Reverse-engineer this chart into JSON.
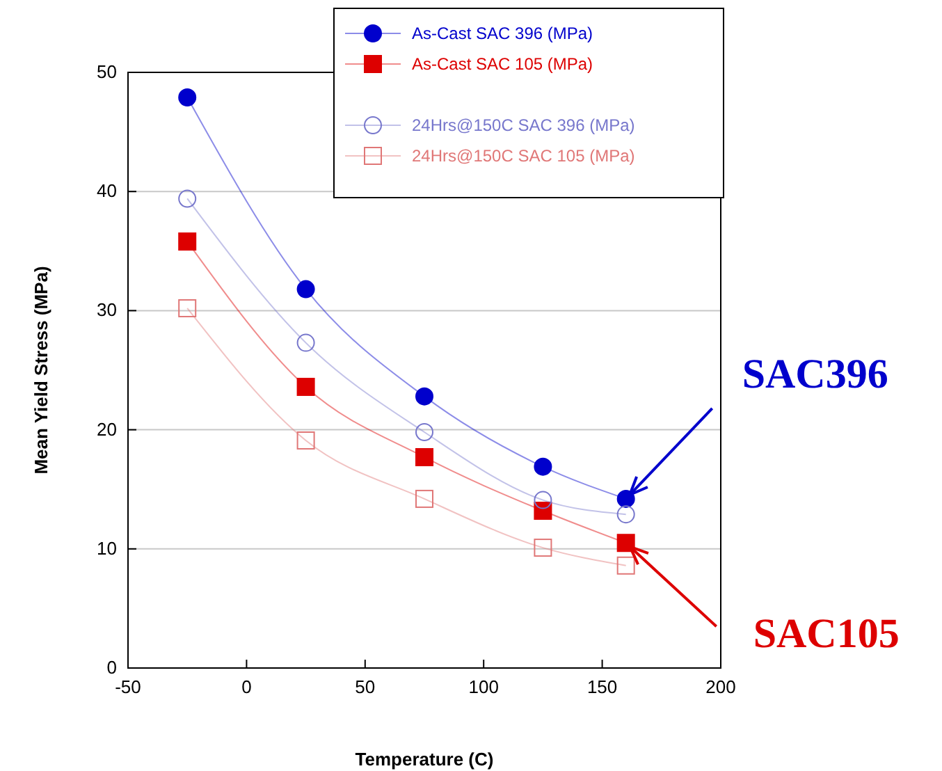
{
  "chart_data": {
    "type": "line",
    "xlabel": "Temperature (C)",
    "ylabel": "Mean Yield Stress (MPa)",
    "x": [
      -25,
      25,
      75,
      125,
      160
    ],
    "xlim": [
      -50,
      200
    ],
    "xticks": [
      -50,
      0,
      50,
      100,
      150,
      200
    ],
    "ylim": [
      0,
      50
    ],
    "yticks": [
      0,
      10,
      20,
      30,
      40,
      50
    ],
    "grid": "y",
    "legend": "top",
    "series": [
      {
        "name": "As-Cast SAC 396 (MPa)",
        "color": "#0000cc",
        "marker": "circle",
        "values": [
          47.9,
          31.8,
          22.8,
          16.9,
          14.2
        ]
      },
      {
        "name": "As-Cast SAC 105 (MPa)",
        "color": "#dd0000",
        "marker": "square",
        "values": [
          35.8,
          23.6,
          17.7,
          13.2,
          10.5
        ]
      },
      {
        "name": "24Hrs@150C SAC 396 (MPa)",
        "color": "#7777cc",
        "marker": "circle-open",
        "values": [
          39.4,
          27.3,
          19.8,
          14.1,
          12.9
        ]
      },
      {
        "name": "24Hrs@150C SAC 105 (MPa)",
        "color": "#e07777",
        "marker": "square-open",
        "values": [
          30.2,
          19.1,
          14.2,
          10.1,
          8.6
        ]
      }
    ],
    "annotations": [
      {
        "text": "SAC396",
        "x": 160,
        "y": 14.2
      },
      {
        "text": "SAC105",
        "x": 160,
        "y": 10.5
      }
    ]
  }
}
